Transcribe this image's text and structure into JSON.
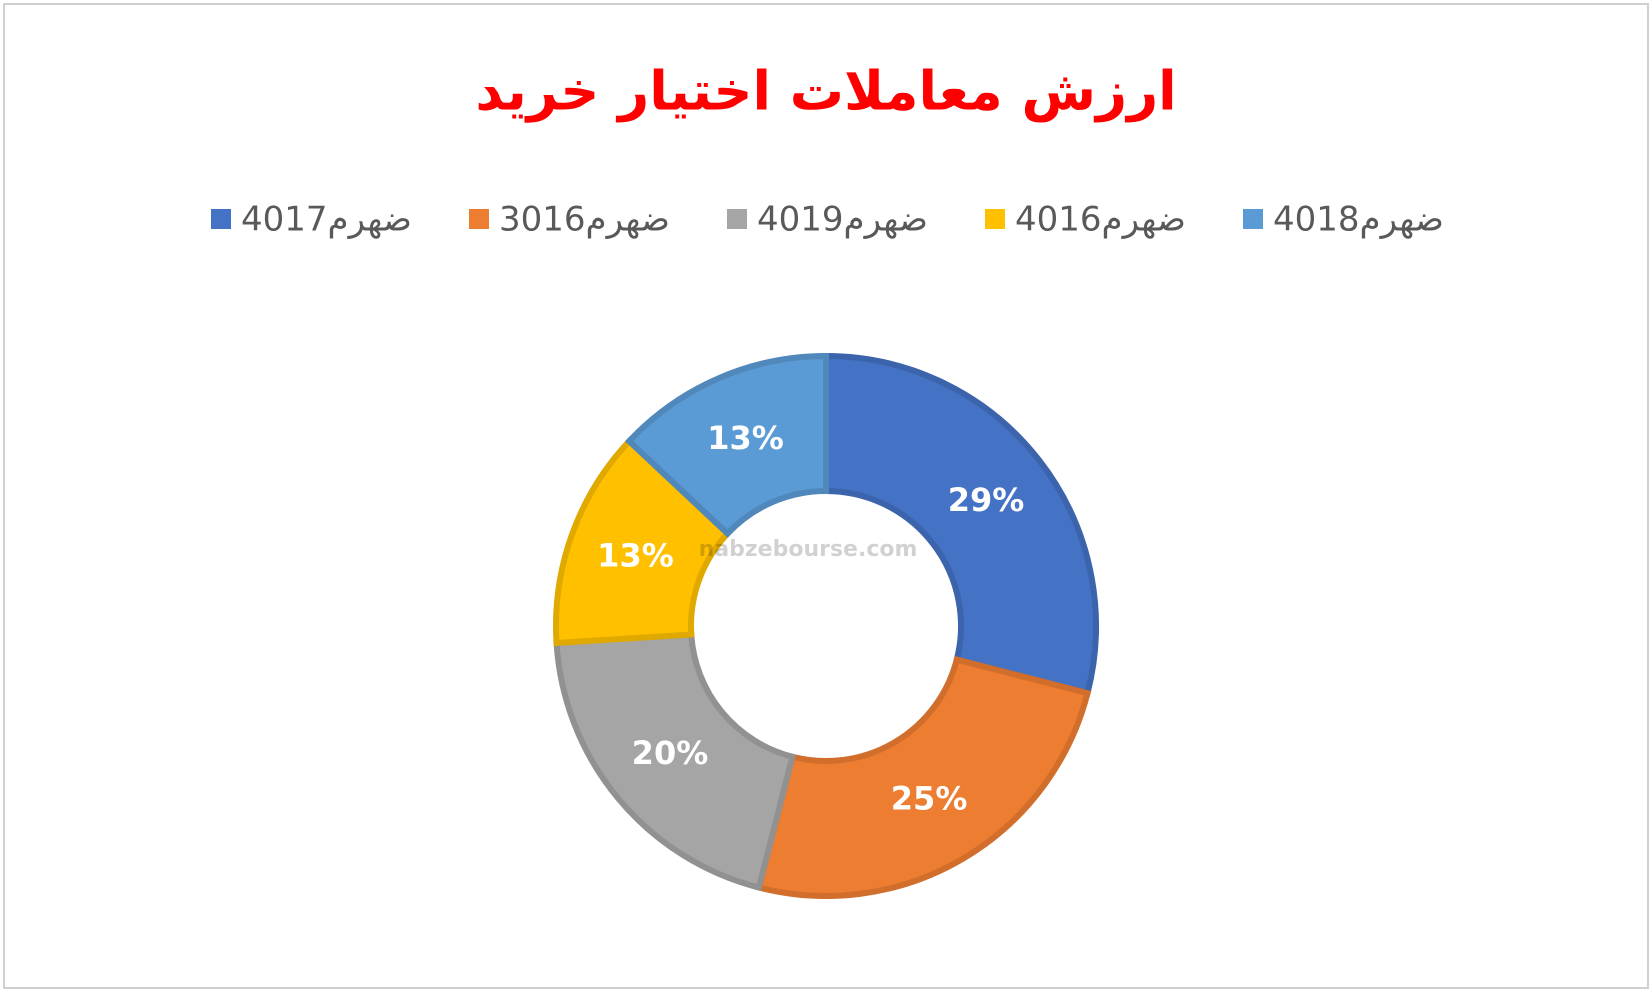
{
  "chart_data": {
    "type": "donut",
    "title": "ارزش معاملات اختیار خرید",
    "categories": [
      "ضهرم4017",
      "ضهرم3016",
      "ضهرم4019",
      "ضهرم4016",
      "ضهرم4018"
    ],
    "values": [
      29,
      25,
      20,
      13,
      13
    ],
    "value_labels": [
      "29%",
      "25%",
      "20%",
      "13%",
      "13%"
    ],
    "colors": [
      "#4472c4",
      "#ed7d31",
      "#a5a5a5",
      "#ffc000",
      "#5b9bd5"
    ],
    "legend": "top",
    "watermark": "nabzebourse.com"
  }
}
